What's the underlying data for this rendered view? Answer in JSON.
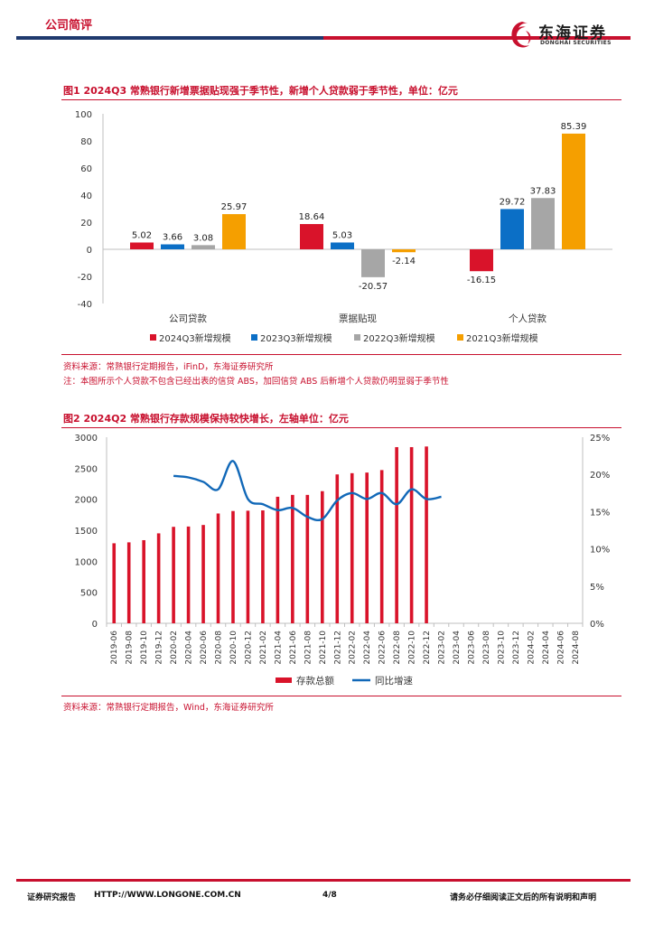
{
  "header": {
    "section": "公司简评",
    "logo_cn": "东海证券",
    "logo_en": "DONGHAI SECURITIES"
  },
  "colors": {
    "red": "#D9132A",
    "blue": "#0B6FC6",
    "gray": "#A6A6A6",
    "orange": "#F59F00",
    "line": "#1168B8",
    "navy": "#1F3A6E"
  },
  "figure1": {
    "title": "图1 2024Q3 常熟银行新增票据贴现强于季节性，新增个人贷款弱于季节性，单位：亿元",
    "source": "资料来源：常熟银行定期报告，iFinD，东海证券研究所",
    "note": "注：本图所示个人贷款不包含已经出表的信贷 ABS，加回信贷 ABS 后新增个人贷款仍明显弱于季节性"
  },
  "figure2": {
    "title": "图2 2024Q2 常熟银行存款规模保持较快增长，左轴单位：亿元",
    "source": "资料来源：常熟银行定期报告，Wind，东海证券研究所"
  },
  "footer": {
    "left": "证券研究报告",
    "url": "HTTP://WWW.LONGONE.COM.CN",
    "page": "4/8",
    "disclaimer": "请务必仔细阅读正文后的所有说明和声明"
  },
  "chart_data": [
    {
      "type": "bar",
      "title": "2024Q3 常熟银行新增票据贴现强于季节性，新增个人贷款弱于季节性，单位：亿元",
      "categories": [
        "公司贷款",
        "票据贴现",
        "个人贷款"
      ],
      "series": [
        {
          "name": "2024Q3新增规模",
          "values": [
            5.02,
            18.64,
            -16.15
          ]
        },
        {
          "name": "2023Q3新增规模",
          "values": [
            3.66,
            5.03,
            29.72
          ]
        },
        {
          "name": "2022Q3新增规模",
          "values": [
            3.08,
            -20.57,
            37.83
          ]
        },
        {
          "name": "2021Q3新增规模",
          "values": [
            25.97,
            -2.14,
            85.39
          ]
        }
      ],
      "ylim": [
        -40,
        100
      ],
      "yticks": [
        -40,
        -20,
        0,
        20,
        40,
        60,
        80,
        100
      ],
      "legend": "bottom"
    },
    {
      "type": "bar+line",
      "title": "2024Q2 常熟银行存款规模保持较快增长，左轴单位：亿元",
      "categories": [
        "2019-06",
        "2019-08",
        "2019-10",
        "2019-12",
        "2020-02",
        "2020-04",
        "2020-06",
        "2020-08",
        "2020-10",
        "2020-12",
        "2021-02",
        "2021-04",
        "2021-06",
        "2021-08",
        "2021-10",
        "2021-12",
        "2022-02",
        "2022-04",
        "2022-06",
        "2022-08",
        "2022-10",
        "2022-12",
        "2023-02",
        "2023-04",
        "2023-06",
        "2023-08",
        "2023-10",
        "2023-12",
        "2024-02",
        "2024-04",
        "2024-06",
        "2024-08"
      ],
      "x_tick_labels": [
        "2019-06",
        "2019-08",
        "2019-10",
        "2019-12",
        "2020-02",
        "2020-04",
        "2020-06",
        "2020-08",
        "2020-10",
        "2020-12",
        "2021-02",
        "2021-04",
        "2021-06",
        "2021-08",
        "2021-10",
        "2021-12",
        "2022-02",
        "2022-04",
        "2022-06",
        "2022-08",
        "2022-10",
        "2022-12",
        "2023-02",
        "2023-04",
        "2023-06",
        "2023-08",
        "2023-10",
        "2023-12",
        "2024-02",
        "2024-04",
        "2024-06",
        "2024-08"
      ],
      "series": [
        {
          "name": "存款总额",
          "axis": "left",
          "kind": "bar",
          "points": [
            [
              0,
              1290
            ],
            [
              1,
              1305
            ],
            [
              2,
              1340
            ],
            [
              3,
              1450
            ],
            [
              4,
              1555
            ],
            [
              5,
              1560
            ],
            [
              6,
              1585
            ],
            [
              7,
              1770
            ],
            [
              8,
              1810
            ],
            [
              9,
              1815
            ],
            [
              10,
              1820
            ],
            [
              11,
              2040
            ],
            [
              12,
              2070
            ],
            [
              13,
              2070
            ],
            [
              14,
              2130
            ],
            [
              15,
              2400
            ],
            [
              16,
              2420
            ],
            [
              17,
              2430
            ],
            [
              18,
              2470
            ],
            [
              19,
              2840
            ],
            [
              20,
              2840
            ],
            [
              21,
              2850
            ]
          ]
        },
        {
          "name": "同比增速",
          "axis": "right",
          "kind": "line",
          "points": [
            [
              4,
              19.8
            ],
            [
              5,
              19.6
            ],
            [
              6,
              19.0
            ],
            [
              7,
              18.0
            ],
            [
              8,
              21.8
            ],
            [
              9,
              16.7
            ],
            [
              10,
              16.0
            ],
            [
              11,
              15.2
            ],
            [
              12,
              15.5
            ],
            [
              13,
              14.3
            ],
            [
              14,
              14.0
            ],
            [
              15,
              16.5
            ],
            [
              16,
              17.5
            ],
            [
              17,
              16.7
            ],
            [
              18,
              17.5
            ],
            [
              19,
              16.0
            ],
            [
              20,
              18.0
            ],
            [
              21,
              16.7
            ],
            [
              22,
              17.0
            ]
          ]
        }
      ],
      "ylim_left": [
        0,
        3000
      ],
      "yticks_left": [
        0,
        500,
        1000,
        1500,
        2000,
        2500,
        3000
      ],
      "ylim_right": [
        0,
        25
      ],
      "yticks_right": [
        "0%",
        "5%",
        "10%",
        "15%",
        "20%",
        "25%"
      ],
      "legend": "bottom"
    }
  ]
}
